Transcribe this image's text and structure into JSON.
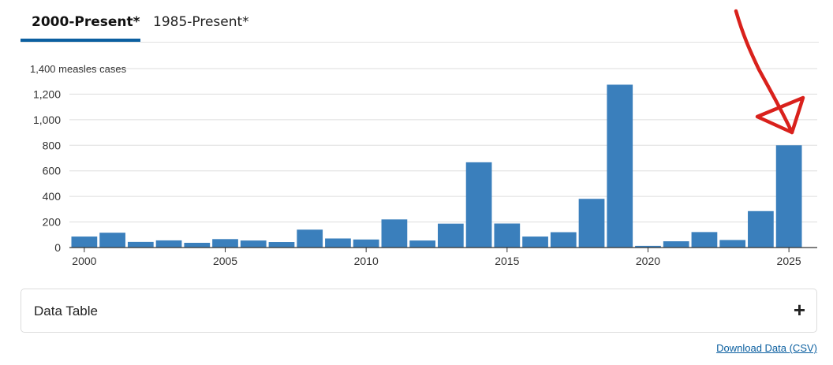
{
  "tabs": [
    {
      "label": "2000-Present*",
      "active": true
    },
    {
      "label": "1985-Present*",
      "active": false
    }
  ],
  "colors": {
    "bar": "#3a7fbc",
    "accent": "#0b5fa0",
    "annotation": "#d9211c",
    "grid": "#dddddd"
  },
  "chart_data": {
    "type": "bar",
    "title": "",
    "xlabel": "",
    "ylabel": "measles cases",
    "categories": [
      "2000",
      "2001",
      "2002",
      "2003",
      "2004",
      "2005",
      "2006",
      "2007",
      "2008",
      "2009",
      "2010",
      "2011",
      "2012",
      "2013",
      "2014",
      "2015",
      "2016",
      "2017",
      "2018",
      "2019",
      "2020",
      "2021",
      "2022",
      "2023",
      "2024",
      "2025"
    ],
    "values": [
      86,
      116,
      44,
      56,
      37,
      66,
      55,
      43,
      140,
      71,
      63,
      220,
      55,
      187,
      667,
      188,
      86,
      120,
      381,
      1274,
      13,
      49,
      121,
      59,
      285,
      800
    ],
    "ylim": [
      0,
      1400
    ],
    "y_ticks": [
      0,
      200,
      400,
      600,
      800,
      1000,
      1200,
      1400
    ],
    "y_tick_labels": [
      "0",
      "200",
      "400",
      "600",
      "800",
      "1,000",
      "1,200",
      "1,400 measles cases"
    ],
    "x_tick_labels": [
      "2000",
      "2005",
      "2010",
      "2015",
      "2020",
      "2025"
    ],
    "grid": true
  },
  "data_table": {
    "label": "Data Table",
    "toggle": "+"
  },
  "download": {
    "label": "Download Data (CSV)"
  }
}
